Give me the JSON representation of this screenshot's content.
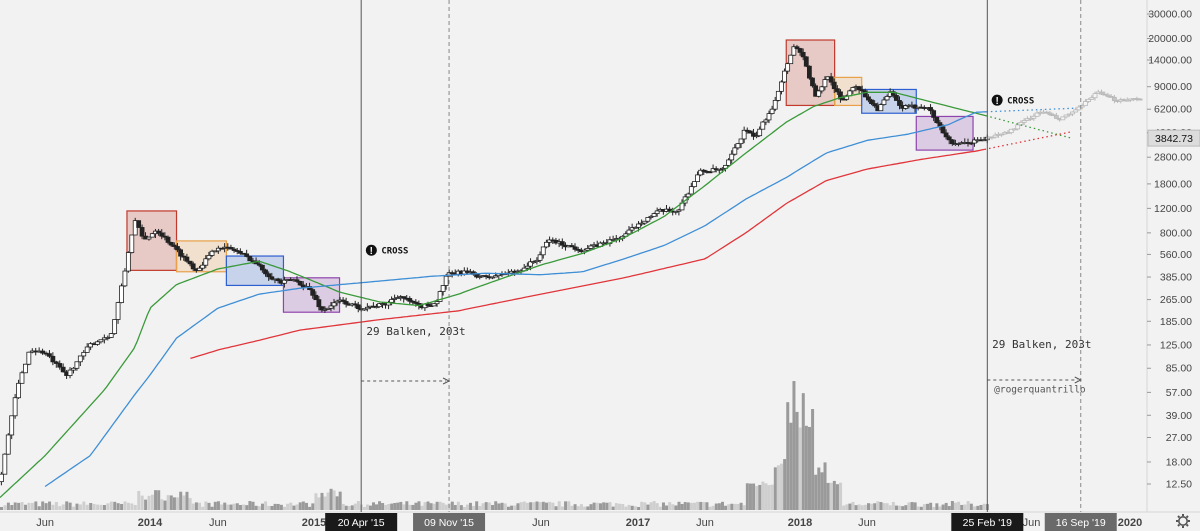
{
  "chart_data": {
    "type": "candlestick",
    "scale": "log",
    "grid": false,
    "legend": "none",
    "ylim": [
      10,
      33000
    ],
    "y_ticks": [
      12.5,
      18.0,
      27.0,
      39.0,
      57.0,
      85.0,
      125.0,
      185.0,
      265.0,
      385.0,
      560.0,
      800.0,
      1200.0,
      1800.0,
      2800.0,
      4200.0,
      6200.0,
      9000.0,
      14000.0,
      20000.0,
      30000.0
    ],
    "y_tick_labels": [
      "12.50",
      "18.00",
      "27.00",
      "39.00",
      "57.00",
      "85.00",
      "125.00",
      "185.00",
      "265.00",
      "385.00",
      "560.00",
      "800.00",
      "1200.00",
      "1800.00",
      "2800.00",
      "4200.00",
      "6200.00",
      "9000.00",
      "14000.00",
      "20000.00",
      "30000.00"
    ],
    "x_ticks": [
      {
        "date": "2013-06-01",
        "label": "Jun"
      },
      {
        "date": "2014-01-01",
        "label": "2014"
      },
      {
        "date": "2014-06-01",
        "label": "Jun"
      },
      {
        "date": "2015-01-01",
        "label": "2015"
      },
      {
        "date": "2016-01-01",
        "label": "16"
      },
      {
        "date": "2016-06-01",
        "label": "Jun"
      },
      {
        "date": "2017-01-01",
        "label": "2017"
      },
      {
        "date": "2017-06-01",
        "label": "Jun"
      },
      {
        "date": "2018-01-01",
        "label": "2018"
      },
      {
        "date": "2018-06-01",
        "label": "Jun"
      },
      {
        "date": "2019-01-01",
        "label": "20"
      },
      {
        "date": "2019-06-01",
        "label": "Jun"
      },
      {
        "date": "2020-01-01",
        "label": "2020"
      }
    ],
    "price_tag": {
      "value": 3842.73,
      "label": "3842.73"
    },
    "series": [
      {
        "name": "",
        "color": "#3a9a3a",
        "points": [
          [
            "2013-03-01",
            10
          ],
          [
            "2013-06-01",
            20
          ],
          [
            "2013-10-01",
            60
          ],
          [
            "2013-12-01",
            120
          ],
          [
            "2014-01-01",
            230
          ],
          [
            "2014-03-01",
            340
          ],
          [
            "2014-06-01",
            440
          ],
          [
            "2014-09-01",
            500
          ],
          [
            "2014-11-01",
            430
          ],
          [
            "2015-03-01",
            300
          ],
          [
            "2015-06-01",
            255
          ],
          [
            "2015-09-01",
            240
          ],
          [
            "2015-12-01",
            290
          ],
          [
            "2016-03-01",
            370
          ],
          [
            "2016-06-01",
            470
          ],
          [
            "2016-09-01",
            570
          ],
          [
            "2016-12-01",
            740
          ],
          [
            "2017-03-01",
            1050
          ],
          [
            "2017-06-01",
            1750
          ],
          [
            "2017-09-01",
            3000
          ],
          [
            "2017-12-01",
            5000
          ],
          [
            "2018-02-01",
            6500
          ],
          [
            "2018-04-01",
            7500
          ],
          [
            "2018-06-01",
            8200
          ],
          [
            "2018-08-01",
            8200
          ],
          [
            "2018-10-01",
            7300
          ],
          [
            "2019-02-01",
            5800
          ],
          [
            "2019-09-01",
            3800
          ]
        ]
      },
      {
        "name": "",
        "color": "#3f8fd6",
        "points": [
          [
            "2013-06-01",
            12
          ],
          [
            "2013-09-01",
            20
          ],
          [
            "2013-12-01",
            55
          ],
          [
            "2014-03-01",
            140
          ],
          [
            "2014-06-01",
            230
          ],
          [
            "2014-09-01",
            290
          ],
          [
            "2014-12-01",
            320
          ],
          [
            "2015-06-01",
            360
          ],
          [
            "2015-10-01",
            390
          ],
          [
            "2016-02-01",
            410
          ],
          [
            "2016-06-01",
            400
          ],
          [
            "2016-09-01",
            420
          ],
          [
            "2016-12-01",
            520
          ],
          [
            "2017-03-01",
            650
          ],
          [
            "2017-06-01",
            900
          ],
          [
            "2017-09-01",
            1400
          ],
          [
            "2017-12-01",
            2000
          ],
          [
            "2018-03-01",
            3000
          ],
          [
            "2018-06-01",
            3700
          ],
          [
            "2018-09-01",
            4100
          ],
          [
            "2018-12-01",
            4800
          ],
          [
            "2019-02-01",
            5900
          ],
          [
            "2019-09-01",
            6300
          ]
        ]
      },
      {
        "name": "",
        "color": "#e0353a",
        "points": [
          [
            "2014-04-01",
            100
          ],
          [
            "2014-06-01",
            115
          ],
          [
            "2014-09-01",
            135
          ],
          [
            "2014-12-01",
            160
          ],
          [
            "2015-06-01",
            190
          ],
          [
            "2015-12-01",
            220
          ],
          [
            "2016-06-01",
            290
          ],
          [
            "2016-12-01",
            380
          ],
          [
            "2017-06-01",
            520
          ],
          [
            "2017-09-01",
            800
          ],
          [
            "2017-12-01",
            1300
          ],
          [
            "2018-03-01",
            1900
          ],
          [
            "2018-06-01",
            2300
          ],
          [
            "2018-10-01",
            2700
          ],
          [
            "2019-02-01",
            3100
          ],
          [
            "2019-09-01",
            4300
          ]
        ]
      }
    ],
    "box_zones": [
      {
        "from": "2013-11-15",
        "to": "2014-03-01",
        "low": 430,
        "high": 1150,
        "color": "#c0392b"
      },
      {
        "from": "2014-03-01",
        "to": "2014-06-20",
        "low": 420,
        "high": 700,
        "color": "#e8a04a"
      },
      {
        "from": "2014-06-20",
        "to": "2014-10-25",
        "low": 335,
        "high": 545,
        "color": "#2e5fd0"
      },
      {
        "from": "2014-10-25",
        "to": "2015-03-01",
        "low": 215,
        "high": 380,
        "color": "#8e44ad"
      },
      {
        "from": "2017-12-01",
        "to": "2018-03-20",
        "low": 6600,
        "high": 19500,
        "color": "#c0392b"
      },
      {
        "from": "2018-03-20",
        "to": "2018-05-20",
        "low": 6600,
        "high": 10500,
        "color": "#e8a04a"
      },
      {
        "from": "2018-05-20",
        "to": "2018-09-20",
        "low": 5800,
        "high": 8600,
        "color": "#2e5fd0"
      },
      {
        "from": "2018-09-20",
        "to": "2019-01-25",
        "low": 3150,
        "high": 5500,
        "color": "#8e44ad"
      }
    ],
    "vertical_markers": [
      {
        "date": "2015-04-20",
        "style": "solid",
        "label": "20 Apr '15"
      },
      {
        "date": "2015-11-09",
        "style": "dashed",
        "label": "09 Nov '15"
      },
      {
        "date": "2019-02-25",
        "style": "solid",
        "label": "25 Feb '19"
      },
      {
        "date": "2019-09-16",
        "style": "dashed",
        "label": "16 Sep '19"
      }
    ],
    "annotations": [
      {
        "text": "CROSS",
        "date": "2015-04-25",
        "price": 600
      },
      {
        "text": "CROSS",
        "date": "2019-03-01",
        "price": 7200
      },
      {
        "text": "29 Balken, 203t",
        "date": "2015-04-25",
        "price": 155
      },
      {
        "text": "29 Balken, 203t",
        "date": "2019-03-01",
        "price": 125
      },
      {
        "text": "@rogerquantrillo",
        "date": "2019-03-01",
        "price": 60
      }
    ],
    "volume_peaks": [
      [
        "2017-12-01",
        "max"
      ],
      [
        "2017-10-01",
        "high"
      ]
    ]
  }
}
